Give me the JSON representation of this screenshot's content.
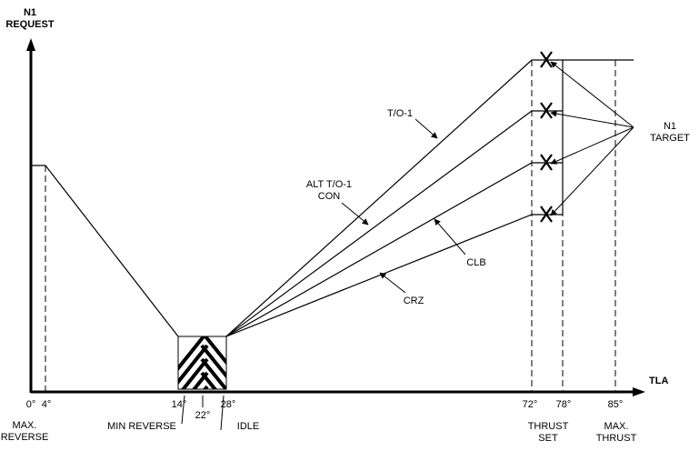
{
  "yaxis": {
    "line1": "N1",
    "line2": "REQUEST"
  },
  "xaxis": {
    "label": "TLA"
  },
  "ticks": {
    "t0": "0°",
    "t4": "4°",
    "t14": "14°",
    "t22": "22°",
    "t28": "28°",
    "t72": "72°",
    "t78": "78°",
    "t85": "85°"
  },
  "below": {
    "max_reverse_1": "MAX.",
    "max_reverse_2": "REVERSE",
    "min_reverse": "MIN REVERSE",
    "idle": "IDLE",
    "thrust_set_1": "THRUST",
    "thrust_set_2": "SET",
    "max_thrust_1": "MAX.",
    "max_thrust_2": "THRUST"
  },
  "curves": {
    "to1": "T/O-1",
    "alt_to1_1": "ALT T/O-1",
    "alt_to1_2": "CON",
    "clb": "CLB",
    "crz": "CRZ"
  },
  "n1_target": {
    "line1": "N1",
    "line2": "TARGET"
  }
}
